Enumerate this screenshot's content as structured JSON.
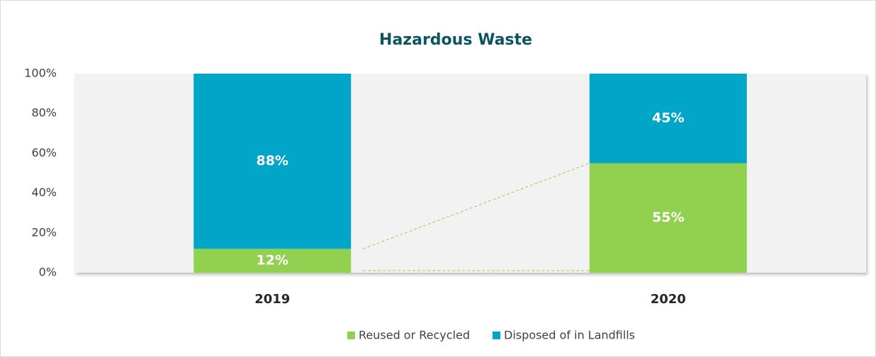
{
  "chart_data": {
    "type": "stacked_bar",
    "title": "Hazardous Waste",
    "categories": [
      "2019",
      "2020"
    ],
    "series": [
      {
        "name": "Reused or Recycled",
        "color": "#92d050",
        "values": [
          12,
          55
        ],
        "value_labels": [
          "12%",
          "55%"
        ]
      },
      {
        "name": "Disposed of in Landfills",
        "color": "#00a5c8",
        "values": [
          88,
          45
        ],
        "value_labels": [
          "88%",
          "45%"
        ]
      }
    ],
    "ylim": [
      0,
      100
    ],
    "yticks": [
      {
        "value": 0,
        "label": "0%"
      },
      {
        "value": 20,
        "label": "20%"
      },
      {
        "value": 40,
        "label": "40%"
      },
      {
        "value": 60,
        "label": "60%"
      },
      {
        "value": 80,
        "label": "80%"
      },
      {
        "value": 100,
        "label": "100%"
      }
    ],
    "legend": "bottom"
  }
}
